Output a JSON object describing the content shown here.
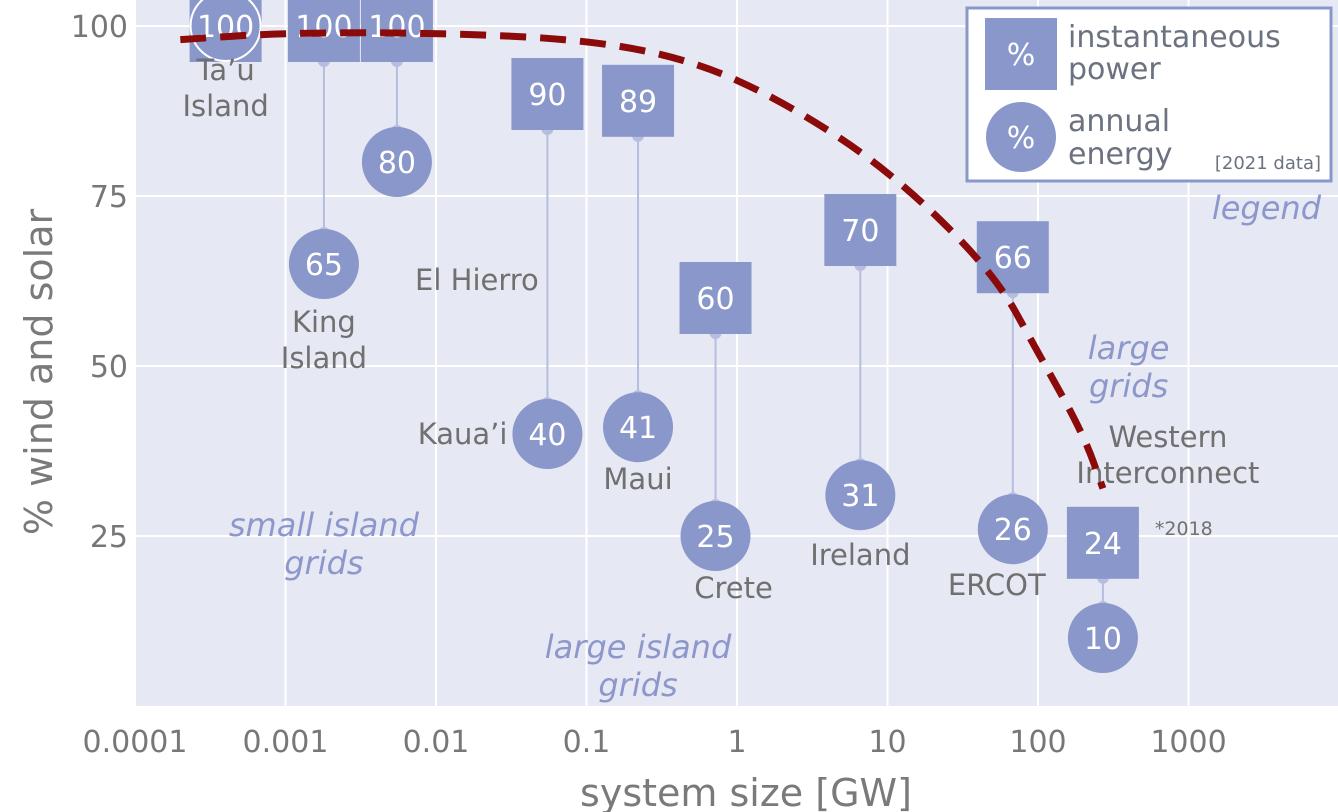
{
  "colors": {
    "background": "#e6e9f3",
    "grid": "#ffffff",
    "marker": "#8a97cb",
    "connector": "#b7bde0",
    "trend": "#8b0a0a",
    "text": "#777777",
    "region_text": "#8d97cb",
    "legend_border": "#8a97cb"
  },
  "legend": {
    "symbol_text": "%",
    "square_label_1": "instantaneous",
    "square_label_2": "power",
    "circle_label_1": "annual",
    "circle_label_2": "energy",
    "data_note": "[2021 data]",
    "caption": "legend"
  },
  "chart_data": {
    "type": "scatter",
    "xlabel": "system size [GW]",
    "ylabel": "% wind and solar",
    "xscale": "log",
    "xticks": [
      "0.0001",
      "0.001",
      "0.01",
      "0.1",
      "1",
      "10",
      "100",
      "1000"
    ],
    "yticks": [
      "25",
      "50",
      "75",
      "100"
    ],
    "xlim": [
      0.0001,
      8000
    ],
    "ylim": [
      0,
      104
    ],
    "grid": true,
    "legend_position": "top-right",
    "series": [
      {
        "name": "instantaneous power",
        "marker": "square"
      },
      {
        "name": "annual energy",
        "marker": "circle"
      }
    ],
    "points": [
      {
        "label": "Ta’u Island",
        "label_lines": [
          "Ta’u",
          "Island"
        ],
        "x": 0.0004,
        "instantaneous_power": 100,
        "annual_energy": 100
      },
      {
        "label": "King Island",
        "label_lines": [
          "King",
          "Island"
        ],
        "x": 0.0018,
        "instantaneous_power": 100,
        "annual_energy": 65
      },
      {
        "label": "El Hierro",
        "label_lines": [
          "El Hierro"
        ],
        "x": 0.0055,
        "instantaneous_power": 100,
        "annual_energy": 80
      },
      {
        "label": "Kaua’i",
        "label_lines": [
          "Kaua’i"
        ],
        "x": 0.055,
        "instantaneous_power": 90,
        "annual_energy": 40
      },
      {
        "label": "Maui",
        "label_lines": [
          "Maui"
        ],
        "x": 0.22,
        "instantaneous_power": 89,
        "annual_energy": 41
      },
      {
        "label": "Crete",
        "label_lines": [
          "Crete"
        ],
        "x": 0.72,
        "instantaneous_power": 60,
        "annual_energy": 25
      },
      {
        "label": "Ireland",
        "label_lines": [
          "Ireland"
        ],
        "x": 6.6,
        "instantaneous_power": 70,
        "annual_energy": 31
      },
      {
        "label": "ERCOT",
        "label_lines": [
          "ERCOT"
        ],
        "x": 68,
        "instantaneous_power": 66,
        "annual_energy": 26
      },
      {
        "label": "Western Interconnect",
        "label_lines": [
          "Western",
          "Interconnect"
        ],
        "x": 270,
        "instantaneous_power": 24,
        "annual_energy": 10,
        "note": "*2018"
      }
    ],
    "trend_line": {
      "style": "dashed",
      "points": [
        [
          0.0002,
          98
        ],
        [
          0.001,
          99
        ],
        [
          0.01,
          99
        ],
        [
          0.1,
          98
        ],
        [
          0.5,
          95
        ],
        [
          2,
          89
        ],
        [
          10,
          79
        ],
        [
          50,
          64
        ],
        [
          100,
          52
        ],
        [
          200,
          40
        ],
        [
          270,
          32
        ]
      ]
    },
    "annotations": [
      {
        "text_lines": [
          "small island",
          "grids"
        ],
        "x": 0.0018,
        "y": 24
      },
      {
        "text_lines": [
          "large island",
          "grids"
        ],
        "x": 0.22,
        "y": 6
      },
      {
        "text_lines": [
          "large",
          "grids"
        ],
        "x": 400,
        "y": 50
      }
    ]
  }
}
